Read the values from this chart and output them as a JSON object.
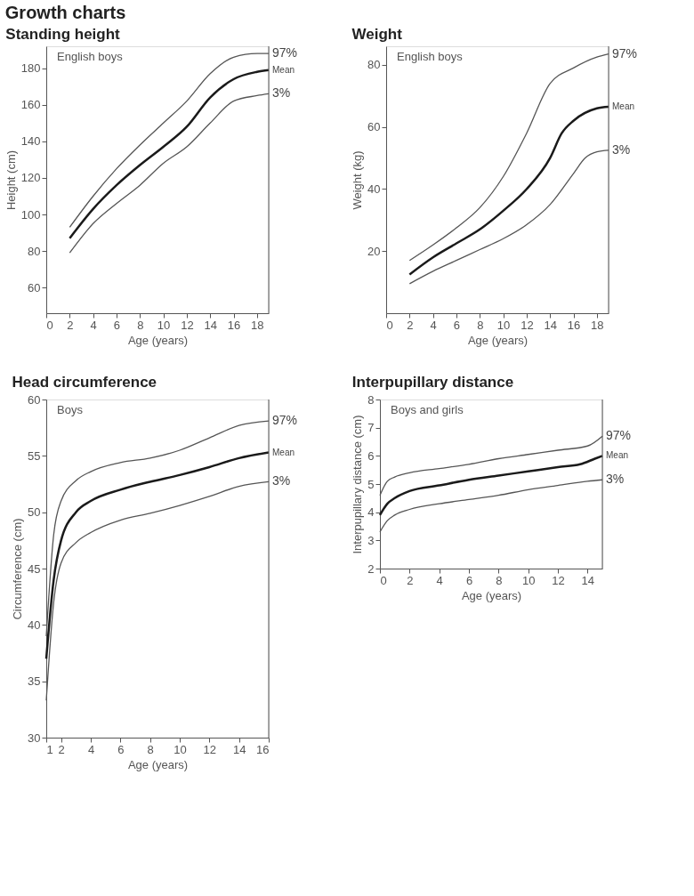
{
  "chart_data": [
    {
      "type": "line",
      "title": "Standing height",
      "xlabel": "Age (years)",
      "ylabel": "Height (cm)",
      "annotations": [
        "Growth charts",
        "English boys"
      ],
      "xlim": [
        0,
        19
      ],
      "xticks": [
        0,
        2,
        4,
        6,
        8,
        10,
        12,
        14,
        16,
        18
      ],
      "ylim": [
        46,
        192
      ],
      "yticks": [
        60,
        80,
        100,
        120,
        140,
        160,
        180
      ],
      "grid": false,
      "marker": "none",
      "line_style": "solid",
      "x": [
        2,
        4,
        6,
        8,
        10,
        12,
        14,
        16,
        18,
        19
      ],
      "series": [
        {
          "name": "97%",
          "color": "#555555",
          "values": [
            93,
            110,
            125,
            138,
            150,
            162,
            177,
            186,
            188,
            188
          ]
        },
        {
          "name": "Mean",
          "color": "#1a1a1a",
          "values": [
            87,
            103,
            116,
            127,
            137,
            148,
            164,
            174,
            178,
            179
          ]
        },
        {
          "name": "3%",
          "color": "#555555",
          "values": [
            79,
            95,
            106,
            116,
            128,
            137,
            150,
            162,
            165,
            166
          ]
        }
      ]
    },
    {
      "type": "line",
      "title": "Weight",
      "xlabel": "Age (years)",
      "ylabel": "Weight (kg)",
      "annotations": [
        "English boys"
      ],
      "xlim": [
        0,
        19
      ],
      "xticks": [
        0,
        2,
        4,
        6,
        8,
        10,
        12,
        14,
        16,
        18
      ],
      "ylim": [
        0,
        86
      ],
      "yticks": [
        20,
        40,
        60,
        80
      ],
      "grid": false,
      "marker": "none",
      "line_style": "solid",
      "series": [
        {
          "name": "97%",
          "color": "#555555",
          "x": [
            2,
            4,
            6,
            8,
            10,
            12,
            14,
            16,
            18,
            19
          ],
          "values": [
            17,
            22,
            27.5,
            34,
            44,
            58,
            74,
            79,
            82.5,
            83.5
          ]
        },
        {
          "name": "Mean",
          "color": "#1a1a1a",
          "x": [
            2,
            4,
            6,
            8,
            10,
            12,
            14,
            15,
            16,
            18,
            19
          ],
          "values": [
            12.5,
            18,
            22.5,
            27,
            33,
            40,
            50,
            58,
            62,
            66,
            66.5
          ]
        },
        {
          "name": "3%",
          "color": "#555555",
          "x": [
            2,
            4,
            6,
            8,
            10,
            12,
            14,
            16,
            17,
            18,
            19
          ],
          "values": [
            9.5,
            13.5,
            17,
            20.5,
            24,
            28.5,
            35,
            45,
            50,
            52,
            52.5
          ]
        }
      ]
    },
    {
      "type": "line",
      "title": "Head circumference",
      "xlabel": "Age (years)",
      "ylabel": "Circumference (cm)",
      "annotations": [
        "Boys"
      ],
      "xlim": [
        1,
        16
      ],
      "xticks": [
        1,
        2,
        4,
        6,
        8,
        10,
        12,
        14,
        16
      ],
      "ylim": [
        30,
        60
      ],
      "yticks": [
        30,
        35,
        40,
        45,
        50,
        55,
        60
      ],
      "grid": false,
      "marker": "none",
      "line_style": "solid",
      "x": [
        1,
        1.5,
        2,
        3,
        4,
        6,
        8,
        10,
        12,
        14,
        16
      ],
      "series": [
        {
          "name": "97%",
          "color": "#555555",
          "values": [
            39,
            48,
            51,
            52.8,
            53.6,
            54.4,
            54.8,
            55.5,
            56.6,
            57.7,
            58.1
          ]
        },
        {
          "name": "Mean",
          "color": "#1a1a1a",
          "values": [
            37,
            44,
            47.5,
            50,
            51,
            52,
            52.7,
            53.3,
            54,
            54.8,
            55.3
          ]
        },
        {
          "name": "3%",
          "color": "#555555",
          "values": [
            33.3,
            42,
            45.5,
            47.3,
            48.2,
            49.3,
            49.9,
            50.6,
            51.4,
            52.3,
            52.7
          ]
        }
      ]
    },
    {
      "type": "line",
      "title": "Interpupillary distance",
      "xlabel": "Age (years)",
      "ylabel": "Interpupillary distance (cm)",
      "annotations": [
        "Boys and girls"
      ],
      "xlim": [
        0,
        15
      ],
      "xticks": [
        0,
        2,
        4,
        6,
        8,
        10,
        12,
        14
      ],
      "ylim": [
        2,
        8
      ],
      "yticks": [
        2,
        3,
        4,
        5,
        6,
        7,
        8
      ],
      "grid": false,
      "marker": "none",
      "line_style": "solid",
      "series": [
        {
          "name": "97%",
          "color": "#555555",
          "x": [
            0,
            0.5,
            1,
            2,
            4,
            6,
            8,
            10,
            12,
            14,
            15
          ],
          "values": [
            4.6,
            5.1,
            5.25,
            5.4,
            5.55,
            5.7,
            5.9,
            6.05,
            6.2,
            6.35,
            6.7
          ]
        },
        {
          "name": "Mean",
          "color": "#1a1a1a",
          "x": [
            0,
            0.5,
            1,
            2,
            4,
            6,
            8,
            10,
            12,
            13.5,
            14.5,
            15
          ],
          "values": [
            3.9,
            4.3,
            4.5,
            4.75,
            4.95,
            5.15,
            5.3,
            5.45,
            5.6,
            5.7,
            5.9,
            6.0
          ]
        },
        {
          "name": "3%",
          "color": "#555555",
          "x": [
            0,
            0.5,
            1,
            2,
            4,
            6,
            8,
            10,
            12,
            14,
            15
          ],
          "values": [
            3.3,
            3.7,
            3.9,
            4.1,
            4.3,
            4.45,
            4.6,
            4.8,
            4.95,
            5.1,
            5.15
          ]
        }
      ]
    }
  ]
}
